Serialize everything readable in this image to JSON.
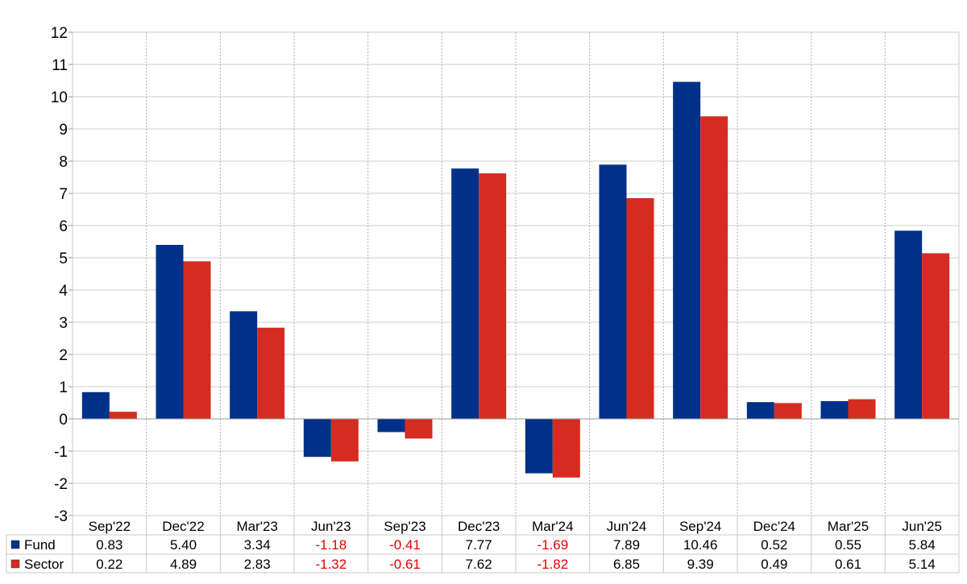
{
  "chart_data": {
    "type": "bar",
    "categories": [
      "Sep'22",
      "Dec'22",
      "Mar'23",
      "Jun'23",
      "Sep'23",
      "Dec'23",
      "Mar'24",
      "Jun'24",
      "Sep'24",
      "Dec'24",
      "Mar'25",
      "Jun'25"
    ],
    "series": [
      {
        "name": "Fund",
        "color": "#003087",
        "values": [
          0.83,
          5.4,
          3.34,
          -1.18,
          -0.41,
          7.77,
          -1.69,
          7.89,
          10.46,
          0.52,
          0.55,
          5.84
        ],
        "labels": [
          "0.83",
          "5.40",
          "3.34",
          "-1.18",
          "-0.41",
          "7.77",
          "-1.69",
          "7.89",
          "10.46",
          "0.52",
          "0.55",
          "5.84"
        ]
      },
      {
        "name": "Sector",
        "color": "#d62b20",
        "values": [
          0.22,
          4.89,
          2.83,
          -1.32,
          -0.61,
          7.62,
          -1.82,
          6.85,
          9.39,
          0.49,
          0.61,
          5.14
        ],
        "labels": [
          "0.22",
          "4.89",
          "2.83",
          "-1.32",
          "-0.61",
          "7.62",
          "-1.82",
          "6.85",
          "9.39",
          "0.49",
          "0.61",
          "5.14"
        ]
      }
    ],
    "ylim": [
      -3,
      12
    ],
    "yticks": [
      "12",
      "11",
      "10",
      "9",
      "8",
      "7",
      "6",
      "5",
      "4",
      "3",
      "2",
      "1",
      "0",
      "-1",
      "-2",
      "-3"
    ],
    "title": "",
    "xlabel": "",
    "ylabel": "",
    "grid": true,
    "legend": "data-table-left",
    "negative_value_color": "#e60000"
  }
}
